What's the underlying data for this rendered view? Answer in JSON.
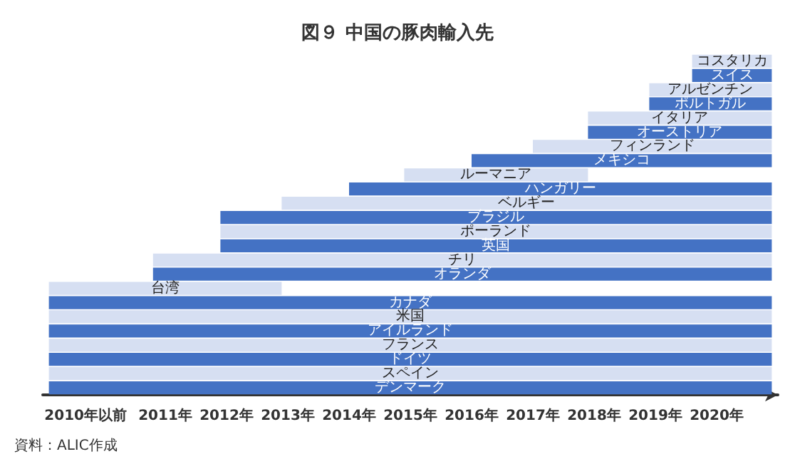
{
  "chart_data": {
    "type": "bar",
    "orientation": "horizontal",
    "title": "図９ 中国の豚肉輸入先",
    "categories": [
      "コスタリカ",
      "スイス",
      "アルゼンチン",
      "ポルトガル",
      "イタリア",
      "オーストリア",
      "フィンランド",
      "メキシコ",
      "ルーマニア",
      "ハンガリー",
      "ベルギー",
      "ブラジル",
      "ポーランド",
      "英国",
      "チリ",
      "オランダ",
      "台湾",
      "カナダ",
      "米国",
      "アイルランド",
      "フランス",
      "ドイツ",
      "スペイン",
      "デンマーク"
    ],
    "base": [
      2019.6,
      2019.6,
      2018.9,
      2018.9,
      2017.9,
      2017.9,
      2017.0,
      2016.0,
      2014.9,
      2014.0,
      2012.9,
      2011.9,
      2011.9,
      2011.9,
      2010.8,
      2010.8,
      2009.1,
      2009.1,
      2009.1,
      2009.1,
      2009.1,
      2009.1,
      2009.1,
      2009.1
    ],
    "values": [
      1.3,
      1.3,
      2.0,
      2.0,
      3.0,
      3.0,
      3.9,
      4.9,
      3.0,
      6.9,
      8.0,
      9.0,
      9.0,
      9.0,
      10.1,
      10.1,
      3.8,
      11.8,
      11.8,
      11.8,
      11.8,
      11.8,
      11.8,
      11.8
    ],
    "colors": [
      "#d6dff2",
      "#4472c4",
      "#d6dff2",
      "#4472c4",
      "#d6dff2",
      "#4472c4",
      "#d6dff2",
      "#4472c4",
      "#d6dff2",
      "#4472c4",
      "#d6dff2",
      "#4472c4",
      "#d6dff2",
      "#4472c4",
      "#d6dff2",
      "#4472c4",
      "#d6dff2",
      "#4472c4",
      "#d6dff2",
      "#4472c4",
      "#d6dff2",
      "#4472c4",
      "#d6dff2",
      "#4472c4"
    ],
    "xlim": [
      2009,
      2021
    ],
    "xticks": [
      {
        "value": 2009.7,
        "label": "2010年以前"
      },
      {
        "value": 2011,
        "label": "2011年"
      },
      {
        "value": 2012,
        "label": "2012年"
      },
      {
        "value": 2013,
        "label": "2013年"
      },
      {
        "value": 2014,
        "label": "2014年"
      },
      {
        "value": 2015,
        "label": "2015年"
      },
      {
        "value": 2016,
        "label": "2016年"
      },
      {
        "value": 2017,
        "label": "2017年"
      },
      {
        "value": 2018,
        "label": "2018年"
      },
      {
        "value": 2019,
        "label": "2019年"
      },
      {
        "value": 2020,
        "label": "2020年"
      }
    ],
    "grid": false,
    "annotations": [
      "資料：ALIC作成"
    ]
  }
}
